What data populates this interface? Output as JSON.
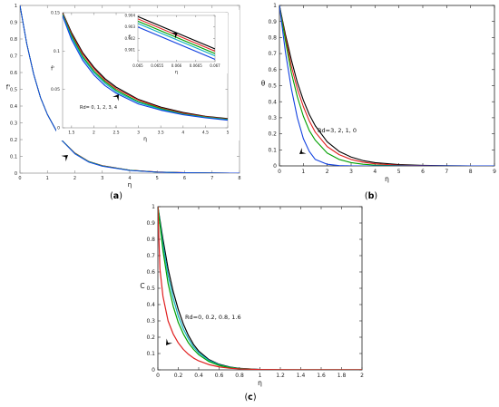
{
  "colors": {
    "black": "#000000",
    "red": "#e02020",
    "green": "#00a000",
    "cyan": "#10b0c0",
    "blue": "#1040e0",
    "axis": "#222222",
    "frame": "#9a9a9a"
  },
  "chart_data": [
    {
      "panel": "a",
      "caption": "(a)",
      "type": "line",
      "xlabel": "η",
      "ylabel": "f'",
      "xlim": [
        0,
        8
      ],
      "ylim": [
        0,
        3
      ],
      "xticks": [
        "0",
        "1",
        "2",
        "3",
        "4",
        "5",
        "6",
        "7",
        "8"
      ],
      "yticks": [
        "0",
        "0.1",
        "0.2",
        "0.3",
        "0.4",
        "0.5",
        "0.6",
        "0.7",
        "0.8",
        "0.9",
        "1"
      ],
      "series": [
        {
          "color": "#000000",
          "x": [
            0,
            0.25,
            0.5,
            0.75,
            1,
            1.5,
            2,
            2.5,
            3,
            4,
            5,
            6,
            7,
            8
          ],
          "y": [
            1,
            0.77,
            0.59,
            0.45,
            0.35,
            0.2,
            0.12,
            0.07,
            0.045,
            0.018,
            0.007,
            0.003,
            0.001,
            0
          ]
        },
        {
          "color": "#e02020",
          "x": [
            0,
            0.25,
            0.5,
            0.75,
            1,
            1.5,
            2,
            2.5,
            3,
            4,
            5,
            6,
            7,
            8
          ],
          "y": [
            1,
            0.77,
            0.59,
            0.45,
            0.35,
            0.2,
            0.12,
            0.07,
            0.044,
            0.017,
            0.007,
            0.003,
            0.001,
            0
          ]
        },
        {
          "color": "#00a000",
          "x": [
            0,
            0.25,
            0.5,
            0.75,
            1,
            1.5,
            2,
            2.5,
            3,
            4,
            5,
            6,
            7,
            8
          ],
          "y": [
            1,
            0.77,
            0.59,
            0.45,
            0.35,
            0.2,
            0.118,
            0.069,
            0.043,
            0.017,
            0.006,
            0.002,
            0.001,
            0
          ]
        },
        {
          "color": "#10b0c0",
          "x": [
            0,
            0.25,
            0.5,
            0.75,
            1,
            1.5,
            2,
            2.5,
            3,
            4,
            5,
            6,
            7,
            8
          ],
          "y": [
            1,
            0.77,
            0.59,
            0.45,
            0.35,
            0.2,
            0.117,
            0.068,
            0.042,
            0.016,
            0.006,
            0.002,
            0.001,
            0
          ]
        },
        {
          "color": "#1040e0",
          "x": [
            0,
            0.25,
            0.5,
            0.75,
            1,
            1.5,
            2,
            2.5,
            3,
            4,
            5,
            6,
            7,
            8
          ],
          "y": [
            1,
            0.77,
            0.59,
            0.45,
            0.35,
            0.2,
            0.115,
            0.066,
            0.041,
            0.016,
            0.006,
            0.002,
            0.001,
            0
          ]
        }
      ],
      "inset": {
        "xlabel": "η",
        "ylabel": "f'",
        "xlim": [
          1.3,
          5
        ],
        "ylim": [
          0,
          0.15
        ],
        "xticks": [
          "1.5",
          "2",
          "2.5",
          "3",
          "3.5",
          "4",
          "4.5",
          "5"
        ],
        "yticks": [
          "0",
          "0.05",
          "0.1",
          "0.15"
        ],
        "annotation": "Rd= 0, 1, 2, 3, 4",
        "series": [
          {
            "color": "#000000",
            "x": [
              1.3,
              1.5,
              1.75,
              2,
              2.25,
              2.5,
              3,
              3.5,
              4,
              4.5,
              5
            ],
            "y": [
              0.15,
              0.124,
              0.098,
              0.079,
              0.064,
              0.053,
              0.037,
              0.027,
              0.02,
              0.015,
              0.012
            ]
          },
          {
            "color": "#e02020",
            "x": [
              1.3,
              1.5,
              1.75,
              2,
              2.25,
              2.5,
              3,
              3.5,
              4,
              4.5,
              5
            ],
            "y": [
              0.149,
              0.122,
              0.096,
              0.077,
              0.062,
              0.051,
              0.036,
              0.026,
              0.019,
              0.0145,
              0.0115
            ]
          },
          {
            "color": "#00a000",
            "x": [
              1.3,
              1.5,
              1.75,
              2,
              2.25,
              2.5,
              3,
              3.5,
              4,
              4.5,
              5
            ],
            "y": [
              0.148,
              0.12,
              0.093,
              0.074,
              0.06,
              0.049,
              0.034,
              0.025,
              0.018,
              0.014,
              0.011
            ]
          },
          {
            "color": "#10b0c0",
            "x": [
              1.3,
              1.5,
              1.75,
              2,
              2.25,
              2.5,
              3,
              3.5,
              4,
              4.5,
              5
            ],
            "y": [
              0.147,
              0.118,
              0.091,
              0.072,
              0.058,
              0.047,
              0.033,
              0.024,
              0.0175,
              0.0135,
              0.0105
            ]
          },
          {
            "color": "#1040e0",
            "x": [
              1.3,
              1.5,
              1.75,
              2,
              2.25,
              2.5,
              3,
              3.5,
              4,
              4.5,
              5
            ],
            "y": [
              0.146,
              0.115,
              0.088,
              0.069,
              0.055,
              0.045,
              0.031,
              0.023,
              0.017,
              0.013,
              0.01
            ]
          }
        ],
        "subinset": {
          "xlabel": "η",
          "ylabel": "f'",
          "xlim": [
            0.065,
            0.067
          ],
          "ylim": [
            0.9,
            0.904
          ],
          "xticks": [
            "0.065",
            "0.0655",
            "0.066",
            "0.0665",
            "0.067"
          ],
          "yticks": [
            "0.901",
            "0.902",
            "0.903",
            "0.904"
          ],
          "series": [
            {
              "color": "#000000",
              "x": [
                0.065,
                0.067
              ],
              "y": [
                0.9039,
                0.9011
              ]
            },
            {
              "color": "#e02020",
              "x": [
                0.065,
                0.067
              ],
              "y": [
                0.9037,
                0.9009
              ]
            },
            {
              "color": "#00a000",
              "x": [
                0.065,
                0.067
              ],
              "y": [
                0.9035,
                0.9007
              ]
            },
            {
              "color": "#10b0c0",
              "x": [
                0.065,
                0.067
              ],
              "y": [
                0.9033,
                0.9005
              ]
            },
            {
              "color": "#1040e0",
              "x": [
                0.065,
                0.067
              ],
              "y": [
                0.903,
                0.9002
              ]
            }
          ]
        }
      }
    },
    {
      "panel": "b",
      "caption": "(b)",
      "type": "line",
      "xlabel": "η",
      "ylabel": "θ",
      "xlim": [
        0,
        9
      ],
      "ylim": [
        0,
        1
      ],
      "xticks": [
        "0",
        "1",
        "2",
        "3",
        "4",
        "5",
        "6",
        "7",
        "8",
        "9"
      ],
      "yticks": [
        "0",
        "0.1",
        "0.2",
        "0.3",
        "0.4",
        "0.5",
        "0.6",
        "0.7",
        "0.8",
        "0.9",
        "1"
      ],
      "annotation": "Rd=3, 2, 1, 0",
      "series": [
        {
          "color": "#000000",
          "x": [
            0,
            0.25,
            0.5,
            0.75,
            1,
            1.25,
            1.5,
            2,
            2.5,
            3,
            3.5,
            4,
            5,
            6,
            7,
            8,
            9
          ],
          "y": [
            1,
            0.82,
            0.66,
            0.52,
            0.41,
            0.32,
            0.25,
            0.15,
            0.09,
            0.055,
            0.033,
            0.02,
            0.008,
            0.003,
            0.001,
            0,
            0
          ]
        },
        {
          "color": "#e02020",
          "x": [
            0,
            0.25,
            0.5,
            0.75,
            1,
            1.25,
            1.5,
            2,
            2.5,
            3,
            3.5,
            4,
            5,
            6,
            7,
            8,
            9
          ],
          "y": [
            1,
            0.8,
            0.62,
            0.48,
            0.37,
            0.28,
            0.21,
            0.12,
            0.07,
            0.04,
            0.023,
            0.013,
            0.004,
            0.001,
            0,
            0,
            0
          ]
        },
        {
          "color": "#00a000",
          "x": [
            0,
            0.25,
            0.5,
            0.75,
            1,
            1.25,
            1.5,
            2,
            2.5,
            3,
            3.5,
            4,
            5,
            6,
            7,
            8,
            9
          ],
          "y": [
            1,
            0.78,
            0.58,
            0.43,
            0.31,
            0.22,
            0.16,
            0.08,
            0.04,
            0.02,
            0.01,
            0.005,
            0.001,
            0,
            0,
            0,
            0
          ]
        },
        {
          "color": "#1040e0",
          "x": [
            0,
            0.25,
            0.5,
            0.75,
            1,
            1.25,
            1.5,
            2,
            2.5,
            3,
            3.5,
            4,
            5,
            6,
            7,
            8,
            9
          ],
          "y": [
            1,
            0.71,
            0.48,
            0.3,
            0.17,
            0.09,
            0.04,
            0.01,
            0.002,
            0,
            0,
            0,
            0,
            0,
            0,
            0,
            0
          ]
        }
      ]
    },
    {
      "panel": "c",
      "caption": "(c)",
      "type": "line",
      "xlabel": "η",
      "ylabel": "C",
      "xlim": [
        0,
        2
      ],
      "ylim": [
        0,
        1
      ],
      "xticks": [
        "0",
        "0.2",
        "0.4",
        "0.6",
        "0.8",
        "1",
        "1.2",
        "1.4",
        "1.6",
        "1.8",
        "2"
      ],
      "yticks": [
        "0",
        "0.1",
        "0.2",
        "0.3",
        "0.4",
        "0.5",
        "0.6",
        "0.7",
        "0.8",
        "0.9",
        "1"
      ],
      "annotation": "Rd=0, 0.2, 0.8, 1.6",
      "series": [
        {
          "color": "#000000",
          "x": [
            0,
            0.05,
            0.1,
            0.15,
            0.2,
            0.25,
            0.3,
            0.35,
            0.4,
            0.5,
            0.6,
            0.7,
            0.8,
            1,
            1.2,
            1.4,
            1.6,
            1.8,
            2
          ],
          "y": [
            1,
            0.8,
            0.62,
            0.48,
            0.37,
            0.28,
            0.21,
            0.155,
            0.115,
            0.063,
            0.034,
            0.018,
            0.009,
            0.002,
            0,
            0,
            0,
            0,
            0
          ]
        },
        {
          "color": "#10b0c0",
          "x": [
            0,
            0.05,
            0.1,
            0.15,
            0.2,
            0.25,
            0.3,
            0.35,
            0.4,
            0.5,
            0.6,
            0.7,
            0.8,
            1,
            1.2,
            1.4,
            1.6,
            1.8,
            2
          ],
          "y": [
            1,
            0.77,
            0.58,
            0.44,
            0.33,
            0.25,
            0.19,
            0.14,
            0.105,
            0.058,
            0.031,
            0.016,
            0.008,
            0.002,
            0,
            0,
            0,
            0,
            0
          ]
        },
        {
          "color": "#00a000",
          "x": [
            0,
            0.05,
            0.1,
            0.15,
            0.2,
            0.25,
            0.3,
            0.35,
            0.4,
            0.5,
            0.6,
            0.7,
            0.8,
            1,
            1.2,
            1.4,
            1.6,
            1.8,
            2
          ],
          "y": [
            1,
            0.73,
            0.53,
            0.39,
            0.29,
            0.22,
            0.165,
            0.125,
            0.093,
            0.051,
            0.027,
            0.014,
            0.007,
            0.001,
            0,
            0,
            0,
            0,
            0
          ]
        },
        {
          "color": "#e02020",
          "x": [
            0,
            0.02,
            0.05,
            0.1,
            0.15,
            0.2,
            0.25,
            0.3,
            0.35,
            0.4,
            0.5,
            0.6,
            0.7,
            0.8,
            1,
            1.2,
            1.4,
            1.6,
            1.8,
            2
          ],
          "y": [
            1,
            0.62,
            0.45,
            0.3,
            0.22,
            0.165,
            0.125,
            0.095,
            0.072,
            0.055,
            0.032,
            0.018,
            0.01,
            0.006,
            0.002,
            0.001,
            0,
            0,
            0,
            0
          ]
        }
      ]
    }
  ]
}
